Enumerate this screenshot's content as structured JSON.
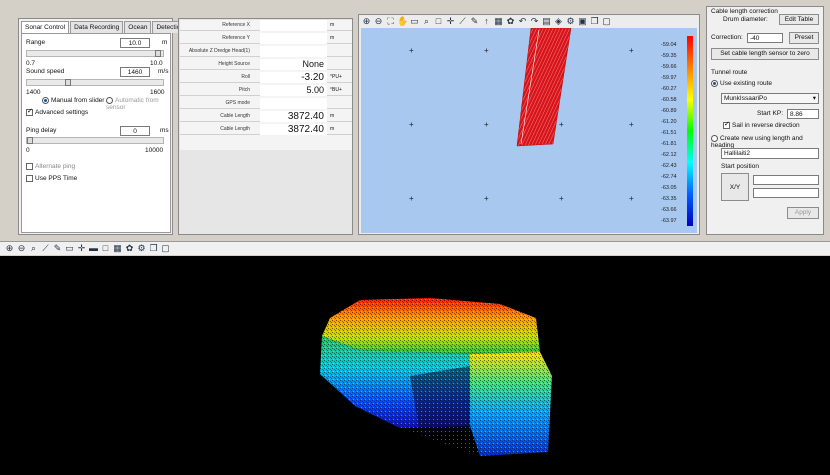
{
  "sonar_panel": {
    "tabs": [
      "Sonar Control",
      "Data Recording",
      "Ocean",
      "Detection"
    ],
    "range_label": "Range",
    "range_value": "10.0",
    "range_unit": "m",
    "range_min": "0.7",
    "range_max": "10.0",
    "sound_speed_label": "Sound speed",
    "sound_speed_value": "1460",
    "sound_speed_unit": "m/s",
    "sound_min": "1400",
    "sound_max": "1600",
    "manual_slider_label": "Manual from slider",
    "auto_sensor_label": "Automatic from sensor",
    "advanced_label": "Advanced settings",
    "ping_delay_label": "Ping delay",
    "ping_delay_value": "0",
    "ping_delay_unit": "ms",
    "ping_min": "0",
    "ping_max": "10000",
    "alternate_ping_label": "Alternate ping",
    "pps_label": "Use PPS Time",
    "range_level": 1.0,
    "sound_level": 0.3,
    "ping_level": 0.0
  },
  "grid_panel": {
    "rows": [
      {
        "label": "Reference X",
        "value": "",
        "unit": "m"
      },
      {
        "label": "Reference Y",
        "value": "",
        "unit": "m"
      },
      {
        "label": "Absolute Z Dredge Head(1)",
        "value": "",
        "unit": ""
      },
      {
        "label": "Height Source",
        "value": "None",
        "unit": ""
      },
      {
        "label": "Roll",
        "value": "-3.20",
        "unit": "°PU+"
      },
      {
        "label": "Pitch",
        "value": "5.00",
        "unit": "°BU+"
      },
      {
        "label": "GPS mode",
        "value": "",
        "unit": ""
      },
      {
        "label": "Cable Length",
        "value": "3872.40",
        "unit": "m"
      },
      {
        "label": "Cable Length",
        "value": "3872.40",
        "unit": "m"
      }
    ]
  },
  "map_panel": {
    "scale_labels": [
      "-59.04",
      "-59.35",
      "-59.66",
      "-59.97",
      "-60.27",
      "-60.58",
      "-60.89",
      "-61.20",
      "-61.51",
      "-61.81",
      "-62.12",
      "-62.43",
      "-62.74",
      "-63.05",
      "-63.35",
      "-63.66",
      "-63.97"
    ]
  },
  "cable_panel": {
    "group_title": "Cable length correction",
    "drum_label": "Drum diameter:",
    "edit_table_label": "Edit Table",
    "correction_label": "Correction:",
    "correction_value": "-40",
    "preset_label": "Preset",
    "set_zero_label": "Set cable length sensor to zero",
    "tunnel_route_label": "Tunnel route",
    "use_existing_label": "Use existing route",
    "route_value": "MunkIssaariPo",
    "start_kp_label": "Start KP:",
    "start_kp_value": "8.86",
    "sail_reverse_label": "Sail in reverse direction",
    "create_new_label": "Create new using length and heading",
    "name_value": "Hallilaiti2",
    "start_position_label": "Start position",
    "xy_label": "X/Y",
    "apply_label": "Apply"
  },
  "colors": {
    "map_bg": "#a9c8f0",
    "frame": "#d4d0c8",
    "panel": "#f0f0f0",
    "view_bg": "#000000"
  }
}
